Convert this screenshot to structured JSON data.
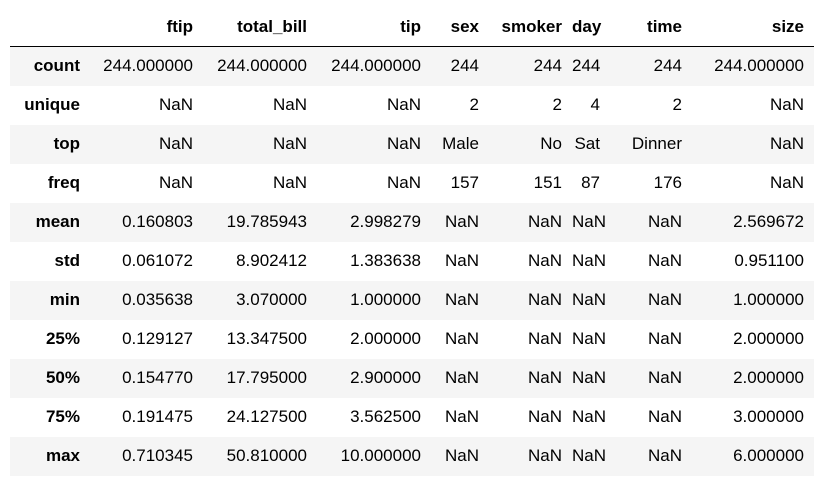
{
  "table": {
    "columns": [
      "",
      "ftip",
      "total_bill",
      "tip",
      "sex",
      "smoker",
      "day",
      "time",
      "size"
    ],
    "rows": [
      {
        "label": "count",
        "cells": [
          "244.000000",
          "244.000000",
          "244.000000",
          "244",
          "244",
          "244",
          "244",
          "244.000000"
        ]
      },
      {
        "label": "unique",
        "cells": [
          "NaN",
          "NaN",
          "NaN",
          "2",
          "2",
          "4",
          "2",
          "NaN"
        ]
      },
      {
        "label": "top",
        "cells": [
          "NaN",
          "NaN",
          "NaN",
          "Male",
          "No",
          "Sat",
          "Dinner",
          "NaN"
        ]
      },
      {
        "label": "freq",
        "cells": [
          "NaN",
          "NaN",
          "NaN",
          "157",
          "151",
          "87",
          "176",
          "NaN"
        ]
      },
      {
        "label": "mean",
        "cells": [
          "0.160803",
          "19.785943",
          "2.998279",
          "NaN",
          "NaN",
          "NaN",
          "NaN",
          "2.569672"
        ]
      },
      {
        "label": "std",
        "cells": [
          "0.061072",
          "8.902412",
          "1.383638",
          "NaN",
          "NaN",
          "NaN",
          "NaN",
          "0.951100"
        ]
      },
      {
        "label": "min",
        "cells": [
          "0.035638",
          "3.070000",
          "1.000000",
          "NaN",
          "NaN",
          "NaN",
          "NaN",
          "1.000000"
        ]
      },
      {
        "label": "25%",
        "cells": [
          "0.129127",
          "13.347500",
          "2.000000",
          "NaN",
          "NaN",
          "NaN",
          "NaN",
          "2.000000"
        ]
      },
      {
        "label": "50%",
        "cells": [
          "0.154770",
          "17.795000",
          "2.900000",
          "NaN",
          "NaN",
          "NaN",
          "NaN",
          "2.000000"
        ]
      },
      {
        "label": "75%",
        "cells": [
          "0.191475",
          "24.127500",
          "3.562500",
          "NaN",
          "NaN",
          "NaN",
          "NaN",
          "3.000000"
        ]
      },
      {
        "label": "max",
        "cells": [
          "0.710345",
          "50.810000",
          "10.000000",
          "NaN",
          "NaN",
          "NaN",
          "NaN",
          "6.000000"
        ]
      }
    ]
  }
}
